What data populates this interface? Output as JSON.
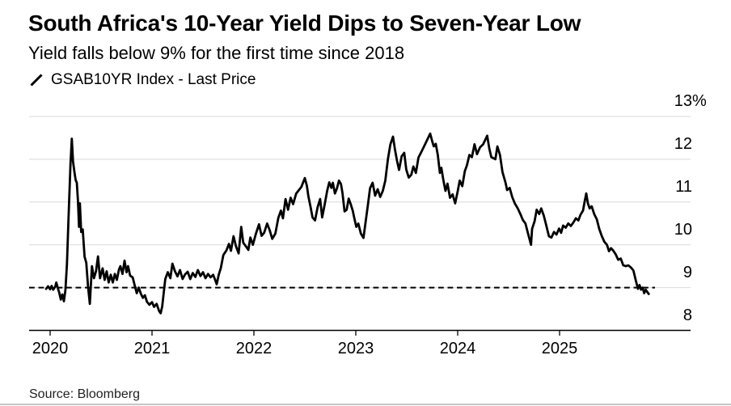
{
  "chart_data": {
    "type": "line",
    "title": "South Africa's 10-Year Yield Dips to Seven-Year Low",
    "subtitle": "Yield falls below 9% for the first time since 2018",
    "source": "Source: Bloomberg",
    "legend": [
      {
        "marker": "slash-line",
        "label": "GSAB10YR Index - Last Price"
      }
    ],
    "grid": "horizontal",
    "ylim": [
      8,
      13.1
    ],
    "x_unit": "decimal years since 2020-01-01",
    "y_unit": "percent yield",
    "reference_line": {
      "value": 9,
      "style": "dashed"
    },
    "x_axis": {
      "ticks": [
        {
          "text": "2020",
          "t": 0
        },
        {
          "text": "2021",
          "t": 1
        },
        {
          "text": "2022",
          "t": 2
        },
        {
          "text": "2023",
          "t": 3
        },
        {
          "text": "2024",
          "t": 4
        },
        {
          "text": "2025",
          "t": 5
        }
      ]
    },
    "y_axis": {
      "side": "right",
      "ticks": [
        {
          "text": "13",
          "suffix": "%",
          "value": 13
        },
        {
          "text": "12",
          "suffix": "",
          "value": 12
        },
        {
          "text": "11",
          "suffix": "",
          "value": 11
        },
        {
          "text": "10",
          "suffix": "",
          "value": 10
        },
        {
          "text": "9",
          "suffix": "",
          "value": 9
        },
        {
          "text": "8",
          "suffix": "",
          "value": 8
        }
      ]
    },
    "series": [
      {
        "name": "GSAB10YR Index - Last Price",
        "color": "#000000",
        "points": [
          [
            -0.04,
            8.97
          ],
          [
            -0.02,
            9.03
          ],
          [
            0.0,
            8.96
          ],
          [
            0.015,
            9.04
          ],
          [
            0.03,
            8.95
          ],
          [
            0.05,
            9.02
          ],
          [
            0.06,
            9.12
          ],
          [
            0.08,
            8.95
          ],
          [
            0.09,
            8.88
          ],
          [
            0.105,
            8.72
          ],
          [
            0.12,
            8.84
          ],
          [
            0.135,
            8.68
          ],
          [
            0.15,
            8.94
          ],
          [
            0.165,
            9.55
          ],
          [
            0.18,
            10.6
          ],
          [
            0.2,
            11.9
          ],
          [
            0.213,
            12.48
          ],
          [
            0.225,
            11.95
          ],
          [
            0.237,
            11.72
          ],
          [
            0.25,
            11.52
          ],
          [
            0.262,
            11.45
          ],
          [
            0.273,
            11.03
          ],
          [
            0.283,
            10.42
          ],
          [
            0.292,
            10.97
          ],
          [
            0.305,
            10.3
          ],
          [
            0.32,
            10.36
          ],
          [
            0.338,
            9.72
          ],
          [
            0.355,
            9.58
          ],
          [
            0.372,
            9.02
          ],
          [
            0.39,
            8.62
          ],
          [
            0.41,
            9.5
          ],
          [
            0.43,
            9.22
          ],
          [
            0.45,
            9.38
          ],
          [
            0.47,
            9.73
          ],
          [
            0.49,
            9.22
          ],
          [
            0.515,
            9.45
          ],
          [
            0.535,
            9.18
          ],
          [
            0.555,
            9.38
          ],
          [
            0.575,
            9.12
          ],
          [
            0.595,
            9.3
          ],
          [
            0.615,
            9.12
          ],
          [
            0.635,
            9.32
          ],
          [
            0.655,
            9.18
          ],
          [
            0.675,
            9.42
          ],
          [
            0.69,
            9.5
          ],
          [
            0.71,
            9.32
          ],
          [
            0.73,
            9.63
          ],
          [
            0.75,
            9.36
          ],
          [
            0.765,
            9.5
          ],
          [
            0.785,
            9.28
          ],
          [
            0.81,
            9.24
          ],
          [
            0.83,
            9.05
          ],
          [
            0.85,
            8.87
          ],
          [
            0.87,
            9.0
          ],
          [
            0.89,
            8.86
          ],
          [
            0.91,
            8.76
          ],
          [
            0.93,
            8.82
          ],
          [
            0.95,
            8.67
          ],
          [
            0.975,
            8.6
          ],
          [
            1.0,
            8.66
          ],
          [
            1.02,
            8.55
          ],
          [
            1.045,
            8.62
          ],
          [
            1.07,
            8.45
          ],
          [
            1.085,
            8.4
          ],
          [
            1.1,
            8.56
          ],
          [
            1.115,
            8.88
          ],
          [
            1.13,
            9.2
          ],
          [
            1.155,
            9.36
          ],
          [
            1.18,
            9.22
          ],
          [
            1.2,
            9.56
          ],
          [
            1.225,
            9.38
          ],
          [
            1.25,
            9.26
          ],
          [
            1.275,
            9.41
          ],
          [
            1.3,
            9.2
          ],
          [
            1.325,
            9.31
          ],
          [
            1.35,
            9.37
          ],
          [
            1.375,
            9.2
          ],
          [
            1.4,
            9.34
          ],
          [
            1.425,
            9.25
          ],
          [
            1.45,
            9.41
          ],
          [
            1.475,
            9.27
          ],
          [
            1.5,
            9.36
          ],
          [
            1.525,
            9.22
          ],
          [
            1.55,
            9.32
          ],
          [
            1.575,
            9.24
          ],
          [
            1.6,
            9.3
          ],
          [
            1.62,
            9.18
          ],
          [
            1.635,
            9.08
          ],
          [
            1.655,
            9.3
          ],
          [
            1.675,
            9.46
          ],
          [
            1.7,
            9.76
          ],
          [
            1.73,
            9.87
          ],
          [
            1.755,
            10.02
          ],
          [
            1.775,
            9.86
          ],
          [
            1.8,
            10.2
          ],
          [
            1.825,
            9.96
          ],
          [
            1.85,
            9.8
          ],
          [
            1.875,
            10.42
          ],
          [
            1.895,
            10.05
          ],
          [
            1.92,
            9.97
          ],
          [
            1.945,
            9.88
          ],
          [
            1.965,
            10.17
          ],
          [
            1.99,
            10.0
          ],
          [
            2.02,
            10.26
          ],
          [
            2.05,
            10.48
          ],
          [
            2.075,
            10.21
          ],
          [
            2.1,
            10.28
          ],
          [
            2.13,
            10.5
          ],
          [
            2.155,
            10.34
          ],
          [
            2.18,
            10.14
          ],
          [
            2.21,
            10.26
          ],
          [
            2.24,
            10.63
          ],
          [
            2.265,
            10.8
          ],
          [
            2.285,
            10.62
          ],
          [
            2.31,
            11.07
          ],
          [
            2.335,
            10.82
          ],
          [
            2.36,
            11.1
          ],
          [
            2.385,
            10.95
          ],
          [
            2.415,
            11.2
          ],
          [
            2.465,
            11.35
          ],
          [
            2.5,
            11.56
          ],
          [
            2.52,
            11.38
          ],
          [
            2.535,
            11.13
          ],
          [
            2.555,
            10.9
          ],
          [
            2.575,
            10.64
          ],
          [
            2.6,
            10.57
          ],
          [
            2.625,
            10.88
          ],
          [
            2.65,
            11.07
          ],
          [
            2.67,
            10.64
          ],
          [
            2.695,
            10.95
          ],
          [
            2.72,
            11.27
          ],
          [
            2.74,
            11.46
          ],
          [
            2.76,
            11.33
          ],
          [
            2.775,
            11.45
          ],
          [
            2.795,
            11.2
          ],
          [
            2.815,
            11.32
          ],
          [
            2.835,
            11.5
          ],
          [
            2.855,
            11.42
          ],
          [
            2.87,
            11.2
          ],
          [
            2.89,
            10.78
          ],
          [
            2.91,
            10.82
          ],
          [
            2.93,
            11.08
          ],
          [
            2.95,
            10.95
          ],
          [
            2.97,
            10.8
          ],
          [
            2.985,
            10.63
          ],
          [
            3.005,
            10.42
          ],
          [
            3.025,
            10.5
          ],
          [
            3.05,
            10.26
          ],
          [
            3.075,
            10.16
          ],
          [
            3.1,
            10.6
          ],
          [
            3.12,
            10.95
          ],
          [
            3.14,
            11.32
          ],
          [
            3.165,
            11.45
          ],
          [
            3.19,
            11.15
          ],
          [
            3.215,
            11.3
          ],
          [
            3.24,
            11.12
          ],
          [
            3.265,
            11.26
          ],
          [
            3.29,
            11.5
          ],
          [
            3.315,
            12.0
          ],
          [
            3.34,
            12.35
          ],
          [
            3.365,
            12.53
          ],
          [
            3.385,
            12.22
          ],
          [
            3.405,
            11.96
          ],
          [
            3.425,
            11.75
          ],
          [
            3.45,
            12.07
          ],
          [
            3.475,
            12.15
          ],
          [
            3.495,
            11.76
          ],
          [
            3.52,
            11.57
          ],
          [
            3.545,
            11.64
          ],
          [
            3.565,
            11.83
          ],
          [
            3.59,
            11.68
          ],
          [
            3.615,
            12.04
          ],
          [
            3.645,
            12.18
          ],
          [
            3.68,
            12.35
          ],
          [
            3.73,
            12.6
          ],
          [
            3.75,
            12.42
          ],
          [
            3.765,
            12.3
          ],
          [
            3.785,
            12.36
          ],
          [
            3.805,
            12.1
          ],
          [
            3.825,
            11.68
          ],
          [
            3.84,
            11.8
          ],
          [
            3.86,
            11.5
          ],
          [
            3.88,
            11.26
          ],
          [
            3.9,
            11.43
          ],
          [
            3.925,
            11.1
          ],
          [
            3.95,
            11.18
          ],
          [
            3.975,
            10.97
          ],
          [
            4.0,
            11.25
          ],
          [
            4.02,
            11.5
          ],
          [
            4.045,
            11.37
          ],
          [
            4.07,
            11.72
          ],
          [
            4.09,
            11.85
          ],
          [
            4.115,
            12.1
          ],
          [
            4.14,
            12.05
          ],
          [
            4.165,
            12.35
          ],
          [
            4.19,
            12.12
          ],
          [
            4.22,
            12.28
          ],
          [
            4.25,
            12.35
          ],
          [
            4.29,
            12.55
          ],
          [
            4.31,
            12.25
          ],
          [
            4.33,
            12.05
          ],
          [
            4.37,
            12.0
          ],
          [
            4.39,
            12.3
          ],
          [
            4.415,
            12.1
          ],
          [
            4.44,
            11.7
          ],
          [
            4.47,
            11.45
          ],
          [
            4.485,
            11.28
          ],
          [
            4.51,
            11.33
          ],
          [
            4.535,
            11.12
          ],
          [
            4.56,
            10.97
          ],
          [
            4.59,
            10.85
          ],
          [
            4.615,
            10.72
          ],
          [
            4.64,
            10.58
          ],
          [
            4.665,
            10.5
          ],
          [
            4.69,
            10.27
          ],
          [
            4.72,
            10.0
          ],
          [
            4.73,
            10.37
          ],
          [
            4.755,
            10.55
          ],
          [
            4.775,
            10.82
          ],
          [
            4.8,
            10.72
          ],
          [
            4.82,
            10.85
          ],
          [
            4.845,
            10.68
          ],
          [
            4.87,
            10.45
          ],
          [
            4.895,
            10.2
          ],
          [
            4.92,
            10.17
          ],
          [
            4.945,
            10.3
          ],
          [
            4.97,
            10.24
          ],
          [
            4.995,
            10.38
          ],
          [
            5.015,
            10.28
          ],
          [
            5.035,
            10.45
          ],
          [
            5.06,
            10.4
          ],
          [
            5.085,
            10.5
          ],
          [
            5.11,
            10.44
          ],
          [
            5.135,
            10.52
          ],
          [
            5.16,
            10.62
          ],
          [
            5.185,
            10.57
          ],
          [
            5.205,
            10.7
          ],
          [
            5.23,
            10.8
          ],
          [
            5.248,
            11.03
          ],
          [
            5.262,
            11.2
          ],
          [
            5.278,
            10.97
          ],
          [
            5.295,
            10.85
          ],
          [
            5.315,
            10.9
          ],
          [
            5.34,
            10.72
          ],
          [
            5.365,
            10.6
          ],
          [
            5.39,
            10.37
          ],
          [
            5.415,
            10.2
          ],
          [
            5.44,
            10.07
          ],
          [
            5.465,
            10.0
          ],
          [
            5.485,
            9.85
          ],
          [
            5.505,
            9.92
          ],
          [
            5.525,
            9.87
          ],
          [
            5.55,
            9.78
          ],
          [
            5.575,
            9.65
          ],
          [
            5.6,
            9.68
          ],
          [
            5.625,
            9.52
          ],
          [
            5.65,
            9.5
          ],
          [
            5.675,
            9.52
          ],
          [
            5.7,
            9.47
          ],
          [
            5.725,
            9.4
          ],
          [
            5.75,
            9.15
          ],
          [
            5.77,
            8.97
          ],
          [
            5.785,
            9.06
          ],
          [
            5.8,
            8.95
          ],
          [
            5.815,
            9.0
          ],
          [
            5.83,
            8.87
          ],
          [
            5.845,
            8.95
          ],
          [
            5.86,
            8.9
          ],
          [
            5.875,
            8.85
          ]
        ]
      }
    ]
  },
  "colors": {
    "background": "#ffffff",
    "text": "#000000",
    "line": "#000000",
    "grid": "#d9d9d9",
    "axis": "#000000",
    "reference": "#000000",
    "divider": "#c6c6c6"
  }
}
